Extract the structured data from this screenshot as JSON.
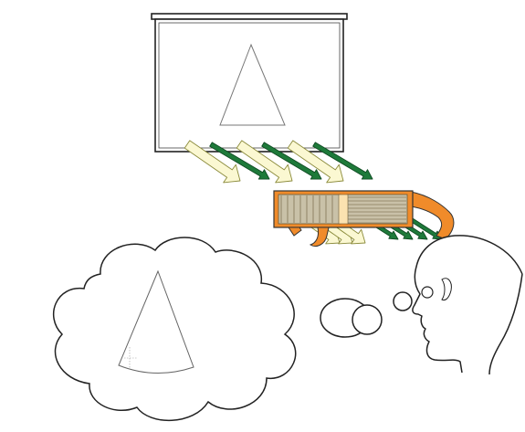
{
  "colors": {
    "background": "#ffffff",
    "outline": "#222222",
    "pale_arrow_fill": "#fbf8d2",
    "pale_arrow_stroke": "#8a8a3a",
    "green_arrow": "#1e7a3a",
    "projector_body": "#f08b2a",
    "projector_inner": "#fbe2b0",
    "projector_slats": "#c9c1a8"
  },
  "icons": [
    "projection-screen",
    "projected-triangle",
    "polarized-light-arrows",
    "3d-glasses",
    "viewer-head",
    "thought-bubble",
    "perceived-cone"
  ]
}
